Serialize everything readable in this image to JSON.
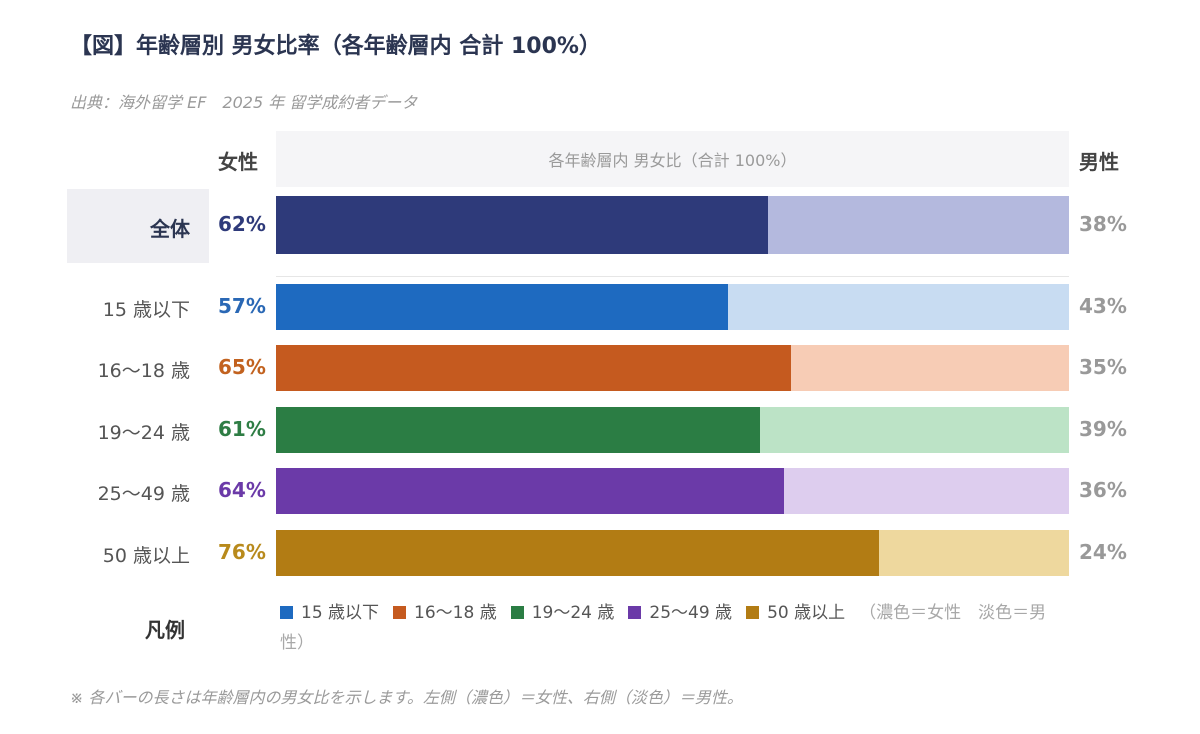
{
  "title": "【図】年齢層別 男女比率（各年齢層内 合計 100%）",
  "source": "出典：海外留学 EF　2025 年 留学成約者データ",
  "header": {
    "female_label": "女性",
    "male_label": "男性",
    "plot_caption": "各年齢層内 男女比（合計 100%）"
  },
  "chart_data": {
    "type": "bar",
    "orientation": "horizontal",
    "stacked": true,
    "stack_total": 100,
    "categories": [
      "全体",
      "15 歳以下",
      "16〜18 歳",
      "19〜24 歳",
      "25〜49 歳",
      "50 歳以上"
    ],
    "series": [
      {
        "name": "女性",
        "values": [
          62,
          57,
          65,
          61,
          64,
          76
        ],
        "display": [
          "62%",
          "57%",
          "65%",
          "61%",
          "64%",
          "76%"
        ]
      },
      {
        "name": "男性",
        "values": [
          38,
          43,
          35,
          39,
          36,
          24
        ],
        "display": [
          "38%",
          "43%",
          "35%",
          "39%",
          "36%",
          "24%"
        ]
      }
    ],
    "colors": {
      "female": [
        "#2e3a7a",
        "#1e6ac0",
        "#c55a1f",
        "#2b7d44",
        "#6b3aa8",
        "#b27c14"
      ],
      "male": [
        "#b4b9de",
        "#c8dcf2",
        "#f7ccb5",
        "#bce3c6",
        "#ddcdee",
        "#eed89e"
      ],
      "female_pct_text": [
        "#2e3a7a",
        "#2a68b5",
        "#c2621f",
        "#2e7d44",
        "#6b3aa8",
        "#b88a1c"
      ]
    }
  },
  "legend": {
    "label": "凡例",
    "items": [
      {
        "name": "15 歳以下",
        "color": "#1e6ac0"
      },
      {
        "name": "16〜18 歳",
        "color": "#c55a1f"
      },
      {
        "name": "19〜24 歳",
        "color": "#2b7d44"
      },
      {
        "name": "25〜49 歳",
        "color": "#6b3aa8"
      },
      {
        "name": "50 歳以上",
        "color": "#b27c14"
      }
    ],
    "note": "（濃色＝女性　淡色＝男性）"
  },
  "footnote": "※ 各バーの長さは年齢層内の男女比を示します。左側（濃色）＝女性、右側（淡色）＝男性。"
}
